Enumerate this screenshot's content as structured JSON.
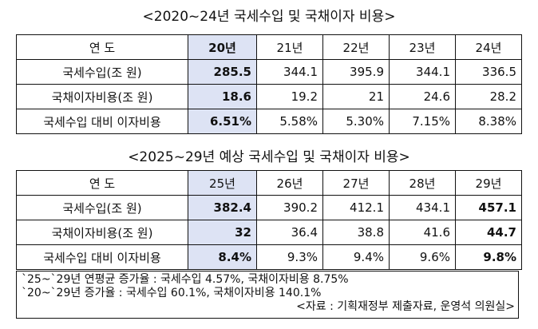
{
  "table1": {
    "title": "<2020~24년 국세수입 및 국채이자 비용>",
    "header": [
      "연 도",
      "20년",
      "21년",
      "22년",
      "23년",
      "24년"
    ],
    "rows": [
      {
        "label": "국세수입(조 원)",
        "values": [
          "285.5",
          "344.1",
          "395.9",
          "344.1",
          "336.5"
        ]
      },
      {
        "label": "국채이자비용(조 원)",
        "values": [
          "18.6",
          "19.2",
          "21",
          "24.6",
          "28.2"
        ]
      },
      {
        "label": "국세수입 대비 이자비용",
        "values": [
          "6.51%",
          "5.58%",
          "5.30%",
          "7.15%",
          "8.38%"
        ]
      }
    ]
  },
  "table2": {
    "title": "<2025~29년 예상 국세수입 및 국채이자 비용>",
    "header": [
      "연 도",
      "25년",
      "26년",
      "27년",
      "28년",
      "29년"
    ],
    "rows": [
      {
        "label": "국세수입(조 원)",
        "values": [
          "382.4",
          "390.2",
          "412.1",
          "434.1",
          "457.1"
        ]
      },
      {
        "label": "국채이자비용(조 원)",
        "values": [
          "32",
          "36.4",
          "38.8",
          "41.6",
          "44.7"
        ]
      },
      {
        "label": "국세수입 대비 이자비용",
        "values": [
          "8.4%",
          "9.3%",
          "9.4%",
          "9.6%",
          "9.8%"
        ]
      }
    ]
  },
  "notes": {
    "line1": "`25~`29년 연평균 증가율 : 국세수입 4.57%, 국채이자비용 8.75%",
    "line2": "`20~`29년 증가율 : 국세수입 60.1%, 국채이자비용 140.1%",
    "source": "<자료 : 기획재정부 제출자료, 운영석 의원실>"
  },
  "colors": {
    "highlight": "#dde3f4",
    "border": "#111111"
  }
}
